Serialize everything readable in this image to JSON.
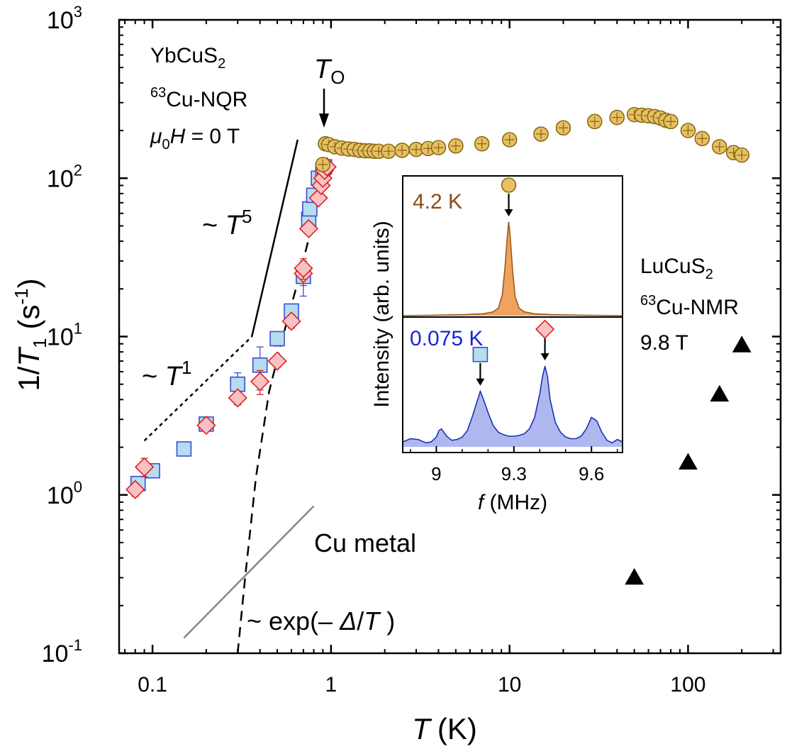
{
  "chart_data": [
    {
      "type": "scatter",
      "xlabel": {
        "var": "T",
        "unit": "(K)"
      },
      "ylabel": {
        "pre": "1/",
        "var": "T",
        "sub": "1",
        "unit_pre": "(s",
        "unit_sup": "-1",
        "unit_post": ")"
      },
      "xscale": "log",
      "yscale": "log",
      "xlim": [
        0.065,
        330
      ],
      "ylim": [
        0.1,
        1000
      ],
      "x_ticks": [
        {
          "value": 0.1,
          "label": "0.1"
        },
        {
          "value": 1,
          "label": "1"
        },
        {
          "value": 10,
          "label": "10"
        },
        {
          "value": 100,
          "label": "100"
        }
      ],
      "y_ticks": [
        {
          "value": 0.1,
          "base": "10",
          "exp": "-1"
        },
        {
          "value": 1,
          "base": "10",
          "exp": "0"
        },
        {
          "value": 10,
          "base": "10",
          "exp": "1"
        },
        {
          "value": 100,
          "base": "10",
          "exp": "2"
        },
        {
          "value": 1000,
          "base": "10",
          "exp": "3"
        }
      ],
      "grid": false,
      "series": [
        {
          "marker": "circle",
          "color": "#e8c064",
          "edge": "#8a6a14",
          "points": [
            [
              0.9,
              122
            ],
            [
              0.93,
              165
            ],
            [
              0.97,
              163
            ],
            [
              1.05,
              158
            ],
            [
              1.15,
              155
            ],
            [
              1.25,
              153
            ],
            [
              1.35,
              152
            ],
            [
              1.45,
              150
            ],
            [
              1.55,
              149
            ],
            [
              1.65,
              149
            ],
            [
              1.75,
              148
            ],
            [
              1.85,
              148
            ],
            [
              2.1,
              148
            ],
            [
              2.5,
              150
            ],
            [
              3,
              152
            ],
            [
              3.5,
              154
            ],
            [
              4,
              156
            ],
            [
              5,
              160
            ],
            [
              7,
              165
            ],
            [
              10,
              175
            ],
            [
              15,
              190
            ],
            [
              20,
              208
            ],
            [
              30,
              228
            ],
            [
              40,
              242
            ],
            [
              50,
              252
            ],
            [
              55,
              250
            ],
            [
              60,
              248
            ],
            [
              65,
              245
            ],
            [
              70,
              240
            ],
            [
              75,
              232
            ],
            [
              80,
              228
            ],
            [
              100,
              200
            ],
            [
              120,
              178
            ],
            [
              150,
              158
            ],
            [
              180,
              145
            ],
            [
              200,
              140
            ]
          ],
          "errors": [
            [
              0.9,
              122,
              3
            ],
            [
              0.93,
              165,
              8
            ],
            [
              0.97,
              163,
              8
            ],
            [
              1.05,
              158,
              8
            ],
            [
              1.15,
              155,
              8
            ],
            [
              1.25,
              153,
              8
            ],
            [
              1.35,
              152,
              8
            ],
            [
              1.45,
              150,
              8
            ],
            [
              1.55,
              149,
              8
            ],
            [
              1.65,
              149,
              8
            ],
            [
              1.75,
              148,
              8
            ],
            [
              1.85,
              148,
              8
            ],
            [
              2.1,
              148,
              8
            ],
            [
              2.5,
              150,
              8
            ],
            [
              3,
              152,
              8
            ],
            [
              3.5,
              154,
              8
            ],
            [
              4,
              156,
              8
            ],
            [
              5,
              160,
              8
            ],
            [
              7,
              165,
              8
            ],
            [
              10,
              175,
              8
            ],
            [
              15,
              190,
              9
            ],
            [
              20,
              208,
              10
            ],
            [
              30,
              228,
              11
            ],
            [
              40,
              242,
              12
            ],
            [
              50,
              252,
              12
            ],
            [
              55,
              250,
              12
            ],
            [
              60,
              248,
              12
            ],
            [
              65,
              245,
              12
            ],
            [
              70,
              240,
              12
            ],
            [
              75,
              232,
              12
            ],
            [
              80,
              228,
              12
            ],
            [
              100,
              200,
              10
            ],
            [
              120,
              178,
              9
            ],
            [
              150,
              158,
              8
            ],
            [
              180,
              145,
              7
            ],
            [
              200,
              140,
              7
            ]
          ]
        },
        {
          "marker": "square",
          "color": "#b6dcef",
          "edge": "#3b4fd0",
          "points": [
            [
              0.083,
              1.18
            ],
            [
              0.1,
              1.42
            ],
            [
              0.15,
              1.95
            ],
            [
              0.2,
              2.8
            ],
            [
              0.3,
              5.0
            ],
            [
              0.4,
              6.6
            ],
            [
              0.5,
              9.7
            ],
            [
              0.6,
              14.5
            ],
            [
              0.7,
              24
            ],
            [
              0.75,
              55
            ],
            [
              0.76,
              64
            ],
            [
              0.8,
              78
            ],
            [
              0.85,
              100
            ],
            [
              0.9,
              112
            ],
            [
              0.92,
              118
            ]
          ],
          "errors": [
            [
              0.083,
              1.18,
              0.1
            ],
            [
              0.1,
              1.42,
              0.1
            ],
            [
              0.15,
              1.95,
              0.15
            ],
            [
              0.2,
              2.8,
              0.25
            ],
            [
              0.3,
              5.0,
              0.9
            ],
            [
              0.4,
              6.6,
              2.0
            ],
            [
              0.5,
              9.7,
              1.0
            ],
            [
              0.6,
              14.5,
              1.5
            ],
            [
              0.7,
              24,
              6
            ],
            [
              0.75,
              55,
              5
            ],
            [
              0.76,
              64,
              6
            ],
            [
              0.8,
              78,
              5
            ],
            [
              0.85,
              100,
              6
            ],
            [
              0.9,
              112,
              6
            ],
            [
              0.92,
              118,
              6
            ]
          ]
        },
        {
          "marker": "diamond",
          "color": "#f7c2c4",
          "edge": "#e02020",
          "points": [
            [
              0.08,
              1.08
            ],
            [
              0.09,
              1.5
            ],
            [
              0.2,
              2.75
            ],
            [
              0.3,
              4.1
            ],
            [
              0.4,
              5.2
            ],
            [
              0.5,
              7.0
            ],
            [
              0.6,
              12.5
            ],
            [
              0.7,
              25
            ],
            [
              0.7,
              27
            ],
            [
              0.75,
              48
            ],
            [
              0.85,
              75
            ],
            [
              0.88,
              90
            ],
            [
              0.9,
              100
            ],
            [
              0.92,
              112
            ],
            [
              0.95,
              118
            ]
          ],
          "errors": [
            [
              0.08,
              1.08,
              0.1
            ],
            [
              0.09,
              1.5,
              0.2
            ],
            [
              0.2,
              2.75,
              0.2
            ],
            [
              0.3,
              4.1,
              0.4
            ],
            [
              0.4,
              5.2,
              0.9
            ],
            [
              0.5,
              7.0,
              0.6
            ],
            [
              0.6,
              12.5,
              1.2
            ],
            [
              0.7,
              25,
              4
            ],
            [
              0.7,
              27,
              4
            ],
            [
              0.75,
              48,
              3
            ],
            [
              0.85,
              75,
              5
            ],
            [
              0.88,
              90,
              6
            ],
            [
              0.9,
              100,
              6
            ],
            [
              0.92,
              112,
              6
            ],
            [
              0.95,
              118,
              6
            ]
          ]
        },
        {
          "marker": "triangle",
          "color": "#000000",
          "edge": "#000000",
          "points": [
            [
              50,
              0.3
            ],
            [
              100,
              1.6
            ],
            [
              150,
              4.3
            ],
            [
              200,
              8.8
            ]
          ],
          "errors": []
        }
      ],
      "guides": [
        {
          "style": "solid",
          "color": "#000000",
          "points": [
            [
              0.36,
              10
            ],
            [
              0.65,
              175
            ]
          ]
        },
        {
          "style": "dotted",
          "color": "#000000",
          "points": [
            [
              0.09,
              2.2
            ],
            [
              0.36,
              10
            ]
          ]
        },
        {
          "style": "dashed",
          "color": "#000000",
          "points": [
            [
              0.3,
              0.1
            ],
            [
              0.33,
              0.3
            ],
            [
              0.38,
              1.3
            ],
            [
              0.45,
              4.5
            ],
            [
              0.55,
              11
            ],
            [
              0.65,
              22
            ],
            [
              0.8,
              55
            ],
            [
              1.0,
              108
            ]
          ]
        },
        {
          "style": "solid",
          "color": "#888888",
          "points": [
            [
              0.15,
              0.125
            ],
            [
              0.8,
              0.85
            ]
          ]
        }
      ],
      "annotations": {
        "sample1": {
          "name_pre": "YbCuS",
          "name_sub": "2",
          "nuc_sup": "63",
          "nuc": "Cu-NQR",
          "field_mu": "μ",
          "field_sub": "0",
          "field_var": "H",
          "field_val": " = 0 T"
        },
        "to_label": {
          "var": "T",
          "sub": "O"
        },
        "t5": {
          "pre": "~ ",
          "var": "T",
          "sup": "5"
        },
        "t1": {
          "pre": "~ ",
          "var": "T",
          "sup": "1"
        },
        "cu_metal": "Cu metal",
        "exp_fit": {
          "pre": "~ exp(– ",
          "var1": "Δ",
          "mid": "/",
          "var2": "T",
          "post": " )"
        },
        "sample2": {
          "name_pre": "LuCuS",
          "name_sub": "2",
          "nuc_sup": "63",
          "nuc": "Cu-NMR",
          "field": "9.8 T"
        }
      }
    },
    {
      "type": "area",
      "inset": true,
      "xlabel": {
        "var": "f",
        "unit": " (MHz)"
      },
      "ylabel": "Intensity (arb. units)",
      "xlim": [
        8.87,
        9.72
      ],
      "x_ticks": [
        {
          "value": 9,
          "label": "9"
        },
        {
          "value": 9.3,
          "label": "9.3"
        },
        {
          "value": 9.6,
          "label": "9.6"
        }
      ],
      "panels": [
        {
          "label": "4.2 K",
          "label_color": "#8b4a12",
          "fill": "#f0a35e",
          "edge": "#9a5a1a",
          "marker": "circle",
          "marker_at": 9.28,
          "x": [
            8.87,
            9.0,
            9.1,
            9.18,
            9.22,
            9.24,
            9.255,
            9.265,
            9.275,
            9.28,
            9.285,
            9.295,
            9.305,
            9.32,
            9.34,
            9.38,
            9.45,
            9.55,
            9.72
          ],
          "y": [
            0.0,
            0.005,
            0.01,
            0.02,
            0.04,
            0.08,
            0.22,
            0.5,
            0.86,
            1.0,
            0.86,
            0.48,
            0.2,
            0.08,
            0.04,
            0.02,
            0.01,
            0.005,
            0.0
          ]
        },
        {
          "label": "0.075 K",
          "label_color": "#1a25d8",
          "fill": "#aeb8ef",
          "edge": "#1f2fb8",
          "markers": [
            {
              "marker": "square",
              "at": 9.17
            },
            {
              "marker": "diamond",
              "at": 9.42
            }
          ],
          "x": [
            8.87,
            8.9,
            8.93,
            8.96,
            8.98,
            9.0,
            9.01,
            9.02,
            9.04,
            9.06,
            9.08,
            9.1,
            9.12,
            9.14,
            9.16,
            9.17,
            9.18,
            9.2,
            9.22,
            9.24,
            9.26,
            9.28,
            9.3,
            9.32,
            9.34,
            9.36,
            9.38,
            9.4,
            9.41,
            9.42,
            9.43,
            9.44,
            9.46,
            9.48,
            9.5,
            9.52,
            9.54,
            9.56,
            9.58,
            9.6,
            9.62,
            9.64,
            9.66,
            9.68,
            9.7,
            9.72
          ],
          "y": [
            0.06,
            0.1,
            0.09,
            0.05,
            0.06,
            0.12,
            0.2,
            0.22,
            0.13,
            0.08,
            0.09,
            0.12,
            0.2,
            0.38,
            0.58,
            0.68,
            0.6,
            0.42,
            0.26,
            0.18,
            0.15,
            0.13,
            0.13,
            0.14,
            0.16,
            0.22,
            0.36,
            0.65,
            0.85,
            0.99,
            0.86,
            0.58,
            0.3,
            0.18,
            0.12,
            0.1,
            0.1,
            0.13,
            0.22,
            0.36,
            0.32,
            0.18,
            0.08,
            0.05,
            0.09,
            0.06
          ]
        }
      ]
    }
  ]
}
